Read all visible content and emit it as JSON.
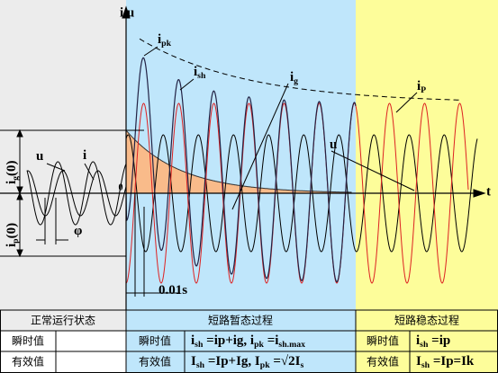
{
  "axes": {
    "y_label": "i u",
    "x_label": "t",
    "origin": "0"
  },
  "labels": {
    "ipk": [
      {
        "t": "i"
      },
      {
        "sub": "pk"
      }
    ],
    "ish": [
      {
        "t": "i"
      },
      {
        "sub": "sh"
      }
    ],
    "ig": [
      {
        "t": "i"
      },
      {
        "sub": "g"
      }
    ],
    "ip": [
      {
        "t": "i"
      },
      {
        "sub": "P"
      }
    ],
    "u_right": [
      {
        "t": "u"
      }
    ],
    "u_left": [
      {
        "t": "u"
      }
    ],
    "i_left": [
      {
        "t": "i"
      }
    ],
    "ig0": [
      {
        "t": "i"
      },
      {
        "sub": "g"
      },
      {
        "t": "(0)"
      }
    ],
    "ip0": [
      {
        "t": "i"
      },
      {
        "sub": "p"
      },
      {
        "t": "(0)"
      }
    ],
    "phi": [
      {
        "t": "φ"
      }
    ],
    "period": [
      {
        "t": "0.01s"
      }
    ]
  },
  "table": {
    "header": [
      "正常运行状态",
      "短路暂态过程",
      "短路稳态过程"
    ],
    "rows": [
      {
        "label": "瞬时值",
        "transient_label": "瞬时值",
        "transient": [
          {
            "t": "i"
          },
          {
            "sub": "sh"
          },
          {
            "t": " =ip+ig,  i"
          },
          {
            "sub": "pk"
          },
          {
            "t": " =i"
          },
          {
            "sub": "sh.max"
          }
        ],
        "steady_label": "瞬时值",
        "steady": [
          {
            "t": "i"
          },
          {
            "sub": "sh"
          },
          {
            "t": " =ip"
          }
        ]
      },
      {
        "label": "有效值",
        "transient_label": "有效值",
        "transient": [
          {
            "t": "I"
          },
          {
            "sub": "sh"
          },
          {
            "t": " =Ip+Ig,  I"
          },
          {
            "sub": "pk"
          },
          {
            "t": " =√2I"
          },
          {
            "sub": "s"
          }
        ],
        "steady_label": "有效值",
        "steady": [
          {
            "t": "I"
          },
          {
            "sub": "sh"
          },
          {
            "t": " =Ip=Ik"
          }
        ]
      }
    ]
  }
}
